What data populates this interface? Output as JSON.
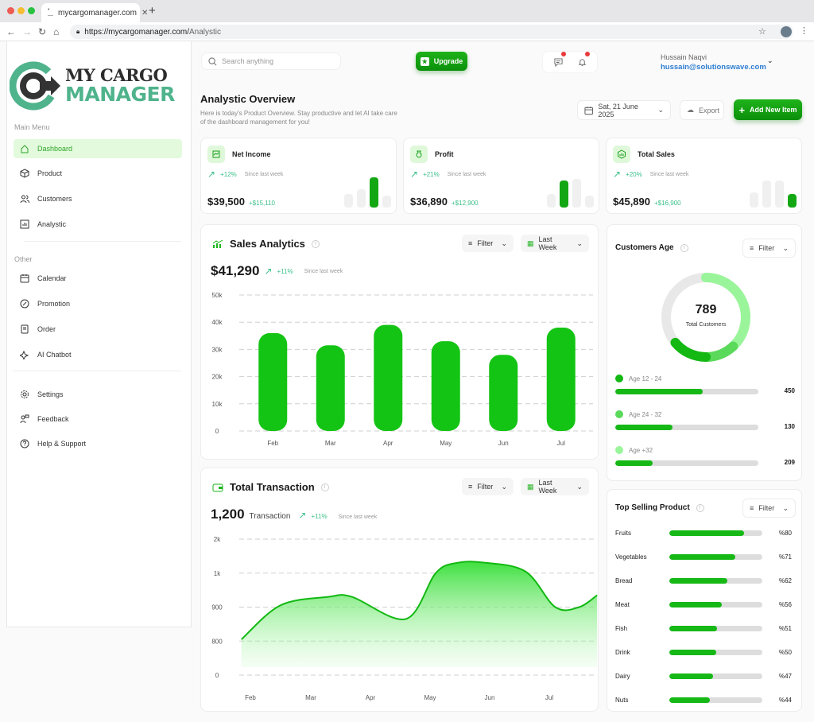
{
  "browser": {
    "tab_title": "mycargomanager.com",
    "url_base": "https://mycargomanager.com/",
    "url_path": "Analystic"
  },
  "logo": {
    "line1": "MY CARGO",
    "line2": "MANAGER"
  },
  "sidebar": {
    "main_label": "Main Menu",
    "main_items": [
      {
        "label": "Dashboard",
        "icon": "home-icon"
      },
      {
        "label": "Product",
        "icon": "box-icon"
      },
      {
        "label": "Customers",
        "icon": "users-icon"
      },
      {
        "label": "Analystic",
        "icon": "chart-icon"
      }
    ],
    "other_label": "Other",
    "other_items": [
      {
        "label": "Calendar",
        "icon": "calendar-icon"
      },
      {
        "label": "Promotion",
        "icon": "promotion-icon"
      },
      {
        "label": "Order",
        "icon": "order-icon"
      },
      {
        "label": "AI Chatbot",
        "icon": "sparkle-icon"
      }
    ],
    "bottom_items": [
      {
        "label": "Settings",
        "icon": "gear-icon"
      },
      {
        "label": "Feedback",
        "icon": "feedback-icon"
      },
      {
        "label": "Help & Support",
        "icon": "help-icon"
      }
    ]
  },
  "header": {
    "search_placeholder": "Search anything",
    "upgrade": "Upgrade",
    "user_name": "Hussain Naqvi",
    "user_email": "hussain@solutionswave.com"
  },
  "overview": {
    "title": "Analystic Overview",
    "subtitle": "Here is today's Product Overview. Stay productive and let AI take care of the dashboard management for you!",
    "date": "Sat, 21 June 2025",
    "export": "Export",
    "add_new": "Add New Item"
  },
  "kpis": [
    {
      "title": "Net Income",
      "change": "+12%",
      "since": "Since last week",
      "value": "$39,500",
      "delta": "+$15,110",
      "bars": [
        0.45,
        0.6,
        1.0,
        0.4
      ],
      "active": 2
    },
    {
      "title": "Profit",
      "change": "+21%",
      "since": "Since last week",
      "value": "$36,890",
      "delta": "+$12,900",
      "bars": [
        0.45,
        0.9,
        0.95,
        0.4
      ],
      "active": 1
    },
    {
      "title": "Total Sales",
      "change": "+20%",
      "since": "Since last week",
      "value": "$45,890",
      "delta": "+$16,900",
      "bars": [
        0.5,
        0.9,
        0.9,
        0.45
      ],
      "active": 3
    }
  ],
  "sales": {
    "title": "Sales Analytics",
    "filter": "Filter",
    "period": "Last Week",
    "value": "$41,290",
    "change": "+11%",
    "since": "Since last week"
  },
  "transaction": {
    "title": "Total Transaction",
    "filter": "Filter",
    "period": "Last Week",
    "value": "1,200",
    "unit": "Transaction",
    "change": "+11%",
    "since": "Since last week"
  },
  "customers_age": {
    "title": "Customers Age",
    "filter": "Filter",
    "total": "789",
    "total_label": "Total Customers",
    "groups": [
      {
        "label": "Age 12 - 24",
        "value": "450",
        "fill": 0.61,
        "color": "#13b813"
      },
      {
        "label": "Age 24 - 32",
        "value": "130",
        "fill": 0.4,
        "color": "#5ad95a"
      },
      {
        "label": "Age +32",
        "value": "209",
        "fill": 0.26,
        "color": "#9af59a"
      }
    ],
    "donut_segments": [
      0.38,
      0.12,
      0.14
    ]
  },
  "top_selling": {
    "title": "Top Selling Product",
    "filter": "Filter",
    "items": [
      {
        "name": "Fruits",
        "pct": 80,
        "label": "%80"
      },
      {
        "name": "Vegetables",
        "pct": 71,
        "label": "%71"
      },
      {
        "name": "Bread",
        "pct": 62,
        "label": "%62"
      },
      {
        "name": "Meat",
        "pct": 56,
        "label": "%56"
      },
      {
        "name": "Fish",
        "pct": 51,
        "label": "%51"
      },
      {
        "name": "Drink",
        "pct": 50,
        "label": "%50"
      },
      {
        "name": "Dairy",
        "pct": 47,
        "label": "%47"
      },
      {
        "name": "Nuts",
        "pct": 44,
        "label": "%44"
      }
    ]
  },
  "chart_data": [
    {
      "type": "bar",
      "title": "Sales Analytics",
      "categories": [
        "Feb",
        "Mar",
        "Apr",
        "May",
        "Jun",
        "Jul"
      ],
      "values": [
        36000,
        31500,
        39000,
        33000,
        28000,
        38000
      ],
      "yticks": [
        "0",
        "10k",
        "20k",
        "30k",
        "40k",
        "50k"
      ],
      "ylim": [
        0,
        50000
      ],
      "grid": true
    },
    {
      "type": "area",
      "title": "Total Transaction",
      "categories": [
        "Feb",
        "Mar",
        "Apr",
        "May",
        "Jun",
        "Jul"
      ],
      "yticks": [
        "0",
        "800",
        "900",
        "1k",
        "2k"
      ],
      "ytick_values": [
        0,
        800,
        900,
        1000,
        2000
      ],
      "points": [
        [
          -0.15,
          805
        ],
        [
          0.5,
          905
        ],
        [
          1.3,
          930
        ],
        [
          1.7,
          930
        ],
        [
          2.6,
          865
        ],
        [
          3.1,
          1000
        ],
        [
          3.45,
          1300
        ],
        [
          3.9,
          1310
        ],
        [
          4.6,
          1050
        ],
        [
          5.1,
          900
        ],
        [
          5.5,
          900
        ],
        [
          5.8,
          935
        ]
      ],
      "grid": true
    }
  ]
}
